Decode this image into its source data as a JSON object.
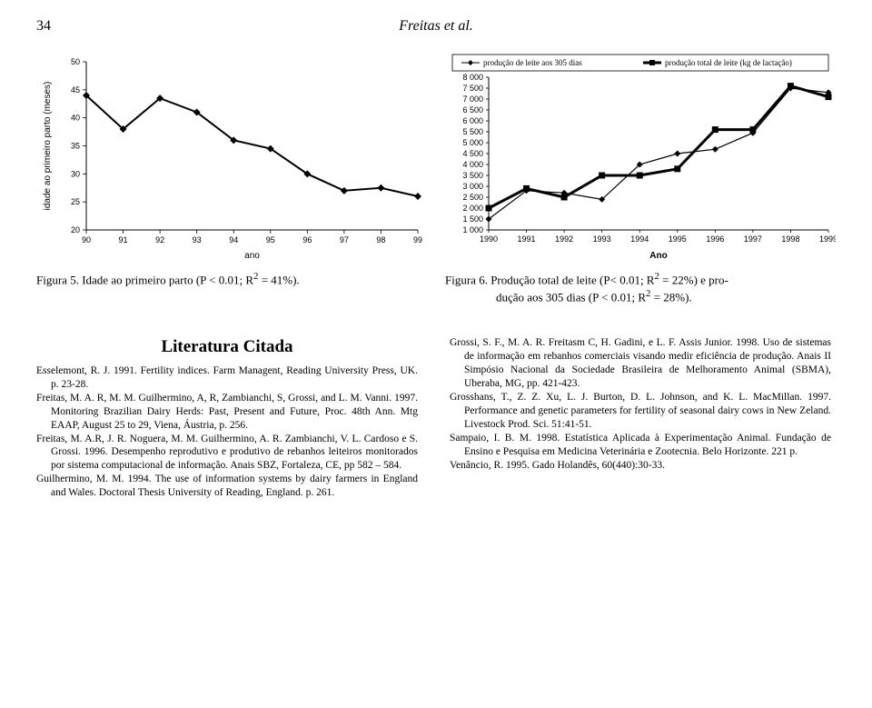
{
  "header": {
    "page_number": "34",
    "running_head": "Freitas et al."
  },
  "figure5": {
    "type": "line",
    "y_axis_title": "idade ao primeiro parto (meses)",
    "x_axis_title": "ano",
    "x_ticks": [
      "90",
      "91",
      "92",
      "93",
      "94",
      "95",
      "96",
      "97",
      "98",
      "99"
    ],
    "y_ticks": [
      20,
      25,
      30,
      35,
      40,
      45,
      50
    ],
    "ylim": [
      20,
      50
    ],
    "points": [
      {
        "x": 0,
        "y": 44
      },
      {
        "x": 1,
        "y": 38
      },
      {
        "x": 2,
        "y": 43.5
      },
      {
        "x": 3,
        "y": 41
      },
      {
        "x": 4,
        "y": 36
      },
      {
        "x": 5,
        "y": 34.5
      },
      {
        "x": 6,
        "y": 30
      },
      {
        "x": 7,
        "y": 27
      },
      {
        "x": 8,
        "y": 27.5
      },
      {
        "x": 9,
        "y": 26
      }
    ],
    "marker": "diamond",
    "line_color": "#000000",
    "line_width": 2,
    "caption_prefix": "Figura 5. ",
    "caption_text": "Idade ao primeiro parto (P < 0.01; R",
    "caption_sup": "2",
    "caption_tail": " = 41%)."
  },
  "figure6": {
    "type": "line-two-series",
    "legend_items": [
      "produção de leite aos 305 dias",
      "produção total de leite (kg de lactação)"
    ],
    "y_ticks": [
      1000,
      1500,
      2000,
      2500,
      3000,
      3500,
      4000,
      4500,
      5000,
      5500,
      6000,
      6500,
      7000,
      7500,
      8000
    ],
    "ylim": [
      1000,
      8000
    ],
    "x_ticks": [
      "1990",
      "1991",
      "1992",
      "1993",
      "1994",
      "1995",
      "1996",
      "1997",
      "1998",
      "1999"
    ],
    "x_axis_title": "Ano",
    "series_a": {
      "label": "produção de leite aos 305 dias",
      "marker": "diamond",
      "line_width": 1.2,
      "points": [
        {
          "x": 0,
          "y": 1500
        },
        {
          "x": 1,
          "y": 2800
        },
        {
          "x": 2,
          "y": 2700
        },
        {
          "x": 3,
          "y": 2400
        },
        {
          "x": 4,
          "y": 4000
        },
        {
          "x": 5,
          "y": 4500
        },
        {
          "x": 6,
          "y": 4700
        },
        {
          "x": 7,
          "y": 5450
        },
        {
          "x": 8,
          "y": 7500
        },
        {
          "x": 9,
          "y": 7300
        }
      ],
      "color": "#000000"
    },
    "series_b": {
      "label": "produção total de leite (kg de lactação)",
      "marker": "square",
      "line_width": 3,
      "points": [
        {
          "x": 0,
          "y": 2000
        },
        {
          "x": 1,
          "y": 2900
        },
        {
          "x": 2,
          "y": 2500
        },
        {
          "x": 3,
          "y": 3500
        },
        {
          "x": 4,
          "y": 3500
        },
        {
          "x": 5,
          "y": 3800
        },
        {
          "x": 6,
          "y": 5600
        },
        {
          "x": 7,
          "y": 5600
        },
        {
          "x": 8,
          "y": 7600
        },
        {
          "x": 9,
          "y": 7100
        }
      ],
      "color": "#000000"
    },
    "caption_prefix": "Figura 6. ",
    "caption_line1_a": "Produção total de leite (P< 0.01; R",
    "caption_sup1": "2",
    "caption_line1_b": " = 22%) e pro-",
    "caption_line2_a": "dução aos 305 dias (P < 0.01; R",
    "caption_sup2": "2",
    "caption_line2_b": " = 28%)."
  },
  "literature": {
    "heading": "Literatura Citada",
    "refs_left": [
      "Esselemont, R. J. 1991. Fertility indices. Farm Managent, Reading University Press, UK. p. 23-28.",
      "Freitas, M. A. R, M. M. Guilhermino, A, R, Zambianchi, S, Grossi, and L. M. Vanni. 1997. Monitoring Brazilian Dairy Herds: Past, Present and Future, Proc. 48th Ann. Mtg EAAP, August 25 to 29, Viena, Áustria, p. 256.",
      "Freitas, M. A.R, J. R. Noguera, M. M. Guilhermino, A. R. Zambianchi, V. L. Cardoso e S. Grossi. 1996. Desempenho reprodutivo e produtivo de rebanhos leiteiros monitorados por sistema computacional de informação. Anais SBZ, Fortaleza, CE, pp 582 – 584.",
      "Guilhermino, M. M. 1994. The use of information systems by dairy farmers in England and Wales. Doctoral Thesis University of Reading, England. p. 261."
    ],
    "refs_right": [
      "Grossi, S. F., M. A. R. Freitasm C, H. Gadini, e L. F. Assis Junior. 1998. Uso de sistemas de informação em rebanhos comerciais visando medir eficiência de produção. Anais II Simpósio Nacional da Sociedade Brasileira de Melhoramento Animal (SBMA), Uberaba, MG, pp. 421-423.",
      "Grosshans, T., Z. Z. Xu, L. J. Burton, D. L. Johnson, and K. L. MacMillan. 1997. Performance and genetic parameters for fertility of seasonal dairy cows in New Zeland. Livestock Prod. Sci. 51:41-51.",
      "Sampaio, I. B. M. 1998. Estatística Aplicada à Experimentação Animal. Fundação de Ensino e Pesquisa em Medicina Veterinária e Zootecnia. Belo Horizonte. 221 p.",
      "Venâncio, R. 1995. Gado Holandês, 60(440):30-33."
    ]
  }
}
